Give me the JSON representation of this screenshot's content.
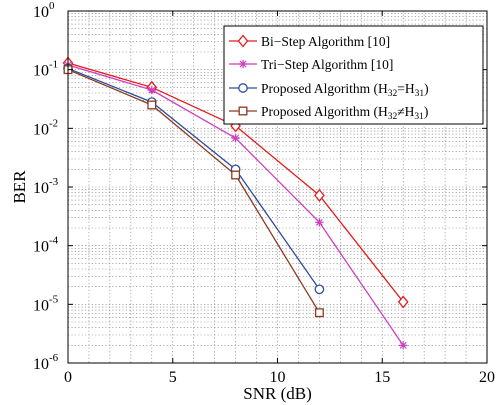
{
  "chart_data": {
    "type": "line",
    "title": "",
    "xlabel": "SNR (dB)",
    "ylabel": "BER",
    "xlim": [
      0,
      20
    ],
    "ylim": [
      1e-06,
      1
    ],
    "yscale": "log",
    "x_ticks": [
      "0",
      "5",
      "10",
      "15",
      "20"
    ],
    "y_tick_exponents": [
      "0",
      "-1",
      "-2",
      "-3",
      "-4",
      "-5",
      "-6"
    ],
    "y_tick_base": "10",
    "grid": true,
    "legend_position": "top-right",
    "series": [
      {
        "name": "Bi−Step Algorithm [10]",
        "color": "#e41a1c",
        "marker": "diamond",
        "x": [
          0,
          4,
          8,
          12,
          16
        ],
        "y": [
          0.13,
          0.05,
          0.011,
          0.00072,
          1.1e-05
        ]
      },
      {
        "name": "Tri−Step Algorithm [10]",
        "color": "#cc3fc0",
        "marker": "asterisk",
        "x": [
          0,
          4,
          8,
          12,
          16
        ],
        "y": [
          0.12,
          0.045,
          0.0068,
          0.00025,
          2e-06
        ]
      },
      {
        "name": "Proposed Algorithm (H32=H31)",
        "legend_parts": [
          "Proposed Algorithm (H",
          "32",
          "=H",
          "31",
          ")"
        ],
        "color": "#2f4e9c",
        "marker": "circle",
        "x": [
          0,
          4,
          8,
          12
        ],
        "y": [
          0.105,
          0.028,
          0.002,
          1.8e-05
        ]
      },
      {
        "name": "Proposed Algorithm (H32≠H31)",
        "legend_parts": [
          "Proposed Algorithm (H",
          "32",
          "≠H",
          "31",
          ")"
        ],
        "color": "#8b3a1e",
        "marker": "square",
        "x": [
          0,
          4,
          8,
          12
        ],
        "y": [
          0.1,
          0.025,
          0.0016,
          7.2e-06
        ]
      }
    ]
  }
}
